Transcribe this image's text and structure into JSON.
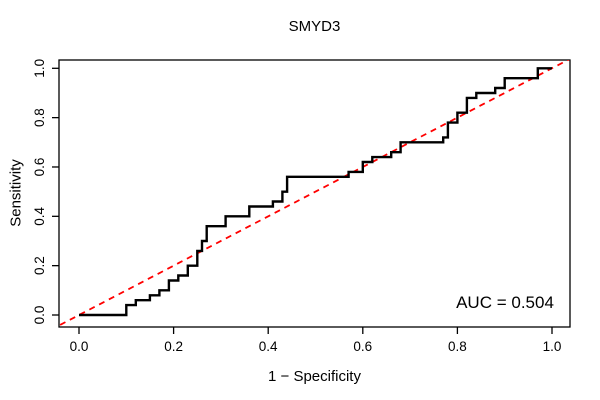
{
  "chart_data": {
    "type": "line",
    "subtype": "roc-step-curve",
    "title": "SMYD3",
    "xlabel": "1 − Specificity",
    "ylabel": "Sensitivity",
    "annotation": "AUC = 0.504",
    "auc": 0.504,
    "xlim": [
      0,
      1
    ],
    "ylim": [
      0,
      1
    ],
    "grid": "off",
    "x_ticks": [
      "0.0",
      "0.2",
      "0.4",
      "0.6",
      "0.8",
      "1.0"
    ],
    "y_ticks": [
      "0.0",
      "0.2",
      "0.4",
      "0.6",
      "0.8",
      "1.0"
    ],
    "x_tick_values": [
      0,
      0.2,
      0.4,
      0.6,
      0.8,
      1.0
    ],
    "y_tick_values": [
      0,
      0.2,
      0.4,
      0.6,
      0.8,
      1.0
    ],
    "colors": {
      "roc_curve": "#000000",
      "chance_line": "#FF0000",
      "axis_box": "#000000",
      "text": "#000000"
    },
    "series": [
      {
        "name": "ROC curve",
        "style": "solid-step",
        "color": "#000000",
        "points": [
          [
            0.0,
            0.0
          ],
          [
            0.1,
            0.0
          ],
          [
            0.1,
            0.04
          ],
          [
            0.12,
            0.04
          ],
          [
            0.12,
            0.06
          ],
          [
            0.15,
            0.06
          ],
          [
            0.15,
            0.08
          ],
          [
            0.17,
            0.08
          ],
          [
            0.17,
            0.1
          ],
          [
            0.19,
            0.1
          ],
          [
            0.19,
            0.14
          ],
          [
            0.21,
            0.14
          ],
          [
            0.21,
            0.16
          ],
          [
            0.23,
            0.16
          ],
          [
            0.23,
            0.2
          ],
          [
            0.25,
            0.2
          ],
          [
            0.25,
            0.26
          ],
          [
            0.26,
            0.26
          ],
          [
            0.26,
            0.3
          ],
          [
            0.27,
            0.3
          ],
          [
            0.27,
            0.36
          ],
          [
            0.31,
            0.36
          ],
          [
            0.31,
            0.4
          ],
          [
            0.36,
            0.4
          ],
          [
            0.36,
            0.44
          ],
          [
            0.41,
            0.44
          ],
          [
            0.41,
            0.46
          ],
          [
            0.43,
            0.46
          ],
          [
            0.43,
            0.5
          ],
          [
            0.44,
            0.5
          ],
          [
            0.44,
            0.56
          ],
          [
            0.57,
            0.56
          ],
          [
            0.57,
            0.58
          ],
          [
            0.6,
            0.58
          ],
          [
            0.6,
            0.62
          ],
          [
            0.62,
            0.62
          ],
          [
            0.62,
            0.64
          ],
          [
            0.66,
            0.64
          ],
          [
            0.66,
            0.66
          ],
          [
            0.68,
            0.66
          ],
          [
            0.68,
            0.7
          ],
          [
            0.77,
            0.7
          ],
          [
            0.77,
            0.72
          ],
          [
            0.78,
            0.72
          ],
          [
            0.78,
            0.78
          ],
          [
            0.8,
            0.78
          ],
          [
            0.8,
            0.82
          ],
          [
            0.82,
            0.82
          ],
          [
            0.82,
            0.88
          ],
          [
            0.84,
            0.88
          ],
          [
            0.84,
            0.9
          ],
          [
            0.88,
            0.9
          ],
          [
            0.88,
            0.92
          ],
          [
            0.9,
            0.92
          ],
          [
            0.9,
            0.96
          ],
          [
            0.97,
            0.96
          ],
          [
            0.97,
            1.0
          ],
          [
            1.0,
            1.0
          ]
        ]
      },
      {
        "name": "chance diagonal",
        "style": "dashed",
        "color": "#FF0000",
        "points": [
          [
            -0.04,
            -0.04
          ],
          [
            1.04,
            1.04
          ]
        ]
      }
    ]
  }
}
